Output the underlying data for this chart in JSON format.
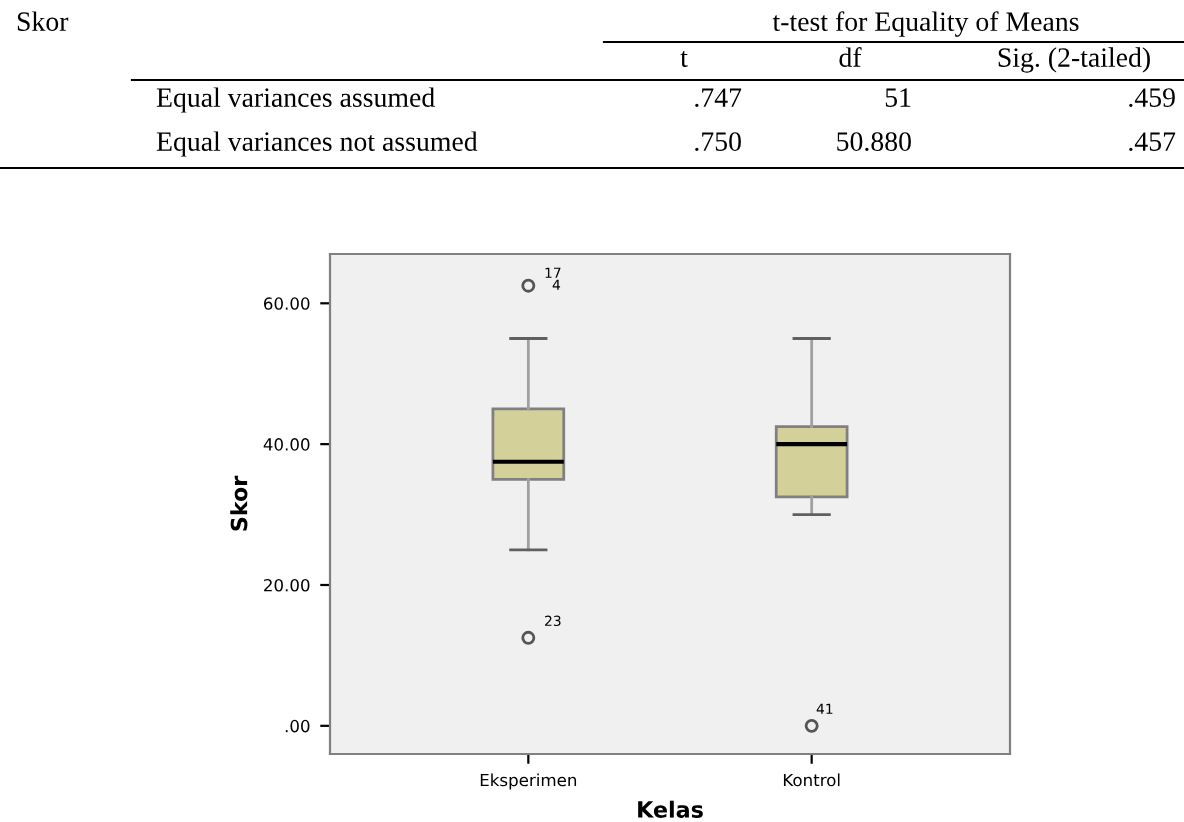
{
  "chart_data": {
    "type": "box",
    "xlabel": "Kelas",
    "ylabel": "Skor",
    "categories": [
      "Eksperimen",
      "Kontrol"
    ],
    "boxes": [
      {
        "low": 25,
        "q1": 35,
        "median": 37.5,
        "q3": 45,
        "high": 55,
        "outliers": [
          62.5,
          12.5
        ]
      },
      {
        "low": 30,
        "q1": 32.5,
        "median": 40,
        "q3": 42.5,
        "high": 55,
        "outliers": [
          0
        ]
      }
    ],
    "color": "#d4d09a",
    "ylim": [
      -4,
      67
    ],
    "yticks": [
      {
        "value": 0,
        "label": ".00"
      },
      {
        "value": 20,
        "label": "20.00"
      },
      {
        "value": 40,
        "label": "40.00"
      },
      {
        "value": 60,
        "label": "60.00"
      }
    ],
    "annotations": [
      "17",
      "4",
      "23",
      "41",
      "Skor",
      "t-test for Equality of Means",
      "t",
      "df",
      "Sig. (2-tailed)",
      "Equal variances assumed",
      ".747",
      "51",
      ".459",
      "Equal variances not assumed",
      ".750",
      "50.880",
      ".457"
    ]
  }
}
